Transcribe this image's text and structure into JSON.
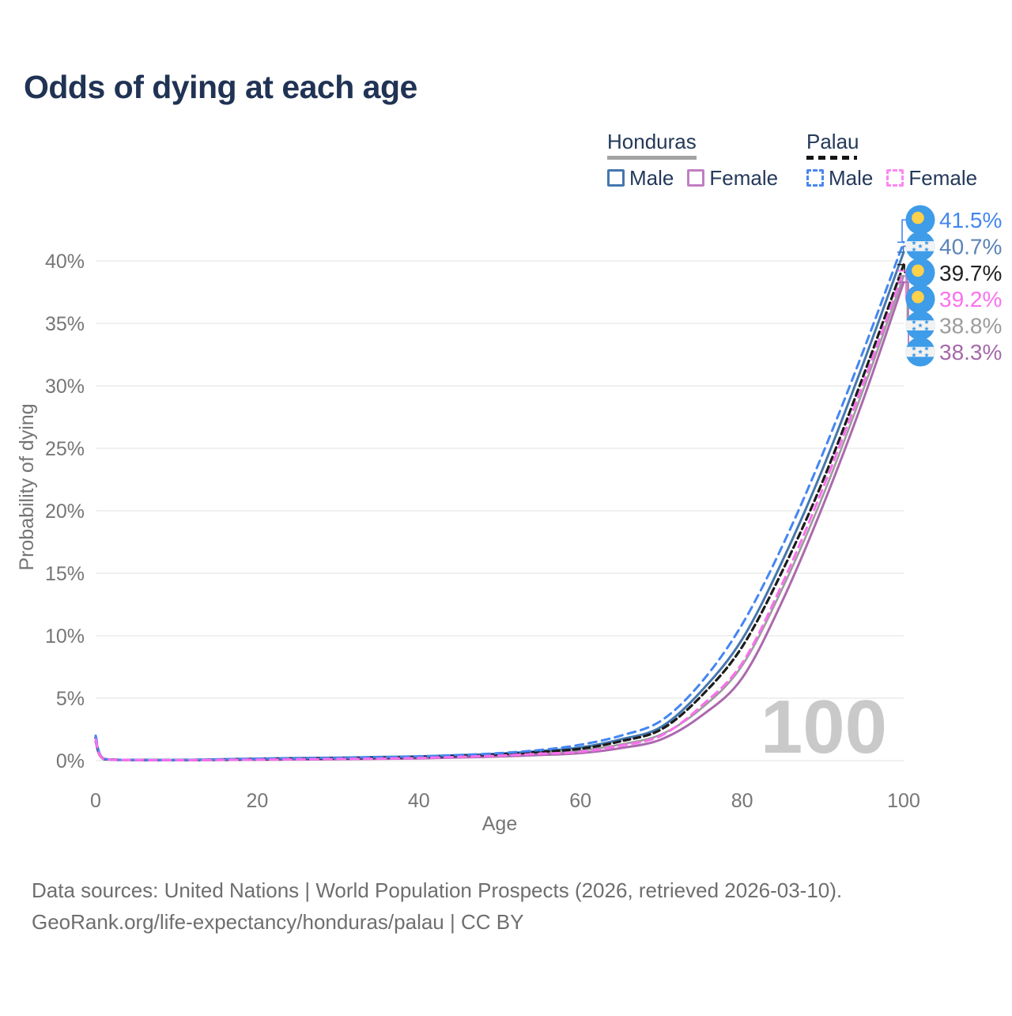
{
  "title": "Odds of dying at each age",
  "watermark": "100",
  "legend": {
    "groups": [
      {
        "name": "Honduras",
        "line_style": "solid",
        "underline_color": "#a3a3a3",
        "items": [
          {
            "label": "Male",
            "color": "#4577ad"
          },
          {
            "label": "Female",
            "color": "#c07fc4"
          }
        ]
      },
      {
        "name": "Palau",
        "line_style": "dashed",
        "underline_color": "#151515",
        "items": [
          {
            "label": "Male",
            "color": "#4a87f2"
          },
          {
            "label": "Female",
            "color": "#fd86f3"
          }
        ]
      }
    ]
  },
  "footer": {
    "line1": "Data sources: United Nations | World Population Prospects (2026, retrieved 2026-03-10).",
    "line2": "GeoRank.org/life-expectancy/honduras/palau | CC BY"
  },
  "chart_data": {
    "type": "line",
    "title": "Odds of dying at each age",
    "xlabel": "Age",
    "ylabel": "Probability of dying",
    "xlim": [
      0,
      100
    ],
    "ylim": [
      0,
      43
    ],
    "grid": "horizontal",
    "legend_position": "top-right",
    "x_ticks": [
      0,
      20,
      40,
      60,
      80,
      100
    ],
    "y_ticks": [
      {
        "value": 0,
        "label": "0%"
      },
      {
        "value": 5,
        "label": "5%"
      },
      {
        "value": 10,
        "label": "10%"
      },
      {
        "value": 15,
        "label": "15%"
      },
      {
        "value": 20,
        "label": "20%"
      },
      {
        "value": 25,
        "label": "25%"
      },
      {
        "value": 30,
        "label": "30%"
      },
      {
        "value": 35,
        "label": "35%"
      },
      {
        "value": 40,
        "label": "40%"
      }
    ],
    "ages": [
      0,
      1,
      5,
      10,
      15,
      20,
      25,
      30,
      35,
      40,
      45,
      50,
      55,
      60,
      65,
      70,
      75,
      80,
      85,
      90,
      95,
      100
    ],
    "series": [
      {
        "name": "Palau — Male",
        "country": "Palau",
        "sex": "male",
        "line": "dashed",
        "color": "#4486f2",
        "width": 3,
        "dasharray": "10 7",
        "flag": "palau",
        "end_value": 41.5,
        "end_label": "41.5%",
        "label_color": "#4486f2",
        "values": [
          2.0,
          0.15,
          0.06,
          0.05,
          0.09,
          0.15,
          0.18,
          0.22,
          0.27,
          0.33,
          0.45,
          0.6,
          0.85,
          1.27,
          2.0,
          3.2,
          6.3,
          10.9,
          17.2,
          24.6,
          32.8,
          41.5
        ]
      },
      {
        "name": "Honduras — Male",
        "country": "Honduras",
        "sex": "male",
        "line": "solid",
        "color": "#4577ad",
        "width": 3,
        "dasharray": "",
        "flag": "honduras",
        "end_value": 40.7,
        "end_label": "40.7%",
        "label_color": "#5b84b4",
        "values": [
          1.8,
          0.14,
          0.055,
          0.05,
          0.1,
          0.16,
          0.2,
          0.24,
          0.29,
          0.34,
          0.44,
          0.56,
          0.76,
          1.05,
          1.7,
          2.7,
          5.6,
          9.7,
          16.0,
          23.4,
          31.8,
          40.7
        ]
      },
      {
        "name": "Palau — Both sexes",
        "country": "Palau",
        "sex": "both",
        "line": "dashed",
        "color": "#1c1c1c",
        "width": 3.2,
        "dasharray": "8 5",
        "flag": "palau",
        "end_value": 39.7,
        "end_label": "39.7%",
        "label_color": "#222222",
        "values": [
          1.85,
          0.14,
          0.055,
          0.045,
          0.07,
          0.12,
          0.15,
          0.18,
          0.22,
          0.28,
          0.38,
          0.5,
          0.7,
          0.95,
          1.55,
          2.5,
          5.2,
          9.1,
          15.2,
          22.4,
          30.8,
          39.7
        ]
      },
      {
        "name": "Palau — Female",
        "country": "Palau",
        "sex": "female",
        "line": "dashed",
        "color": "#fa70ee",
        "width": 3,
        "dasharray": "10 7",
        "flag": "palau",
        "end_value": 39.2,
        "end_label": "39.2%",
        "label_color": "#fa70ee",
        "values": [
          1.7,
          0.13,
          0.05,
          0.04,
          0.055,
          0.08,
          0.1,
          0.13,
          0.16,
          0.21,
          0.3,
          0.4,
          0.55,
          0.7,
          1.2,
          2.0,
          4.4,
          7.8,
          14.2,
          21.8,
          30.2,
          39.2
        ]
      },
      {
        "name": "Honduras — Both sexes",
        "country": "Honduras",
        "sex": "both",
        "line": "solid",
        "color": "#9c9c9c",
        "width": 2.6,
        "dasharray": "",
        "flag": "honduras",
        "end_value": 38.8,
        "end_label": "38.8%",
        "label_color": "#9c9c9c",
        "values": [
          1.65,
          0.13,
          0.05,
          0.045,
          0.07,
          0.12,
          0.15,
          0.17,
          0.21,
          0.26,
          0.34,
          0.44,
          0.6,
          0.8,
          1.3,
          2.1,
          4.2,
          7.6,
          13.8,
          21.2,
          29.7,
          38.8
        ]
      },
      {
        "name": "Honduras — Female",
        "country": "Honduras",
        "sex": "female",
        "line": "solid",
        "color": "#ab69ad",
        "width": 3,
        "dasharray": "",
        "flag": "honduras",
        "end_value": 38.3,
        "end_label": "38.3%",
        "label_color": "#a569a9",
        "values": [
          1.5,
          0.12,
          0.045,
          0.04,
          0.05,
          0.07,
          0.09,
          0.11,
          0.14,
          0.18,
          0.25,
          0.33,
          0.45,
          0.6,
          1.0,
          1.7,
          3.6,
          6.6,
          12.8,
          20.4,
          28.9,
          38.3
        ]
      }
    ]
  }
}
